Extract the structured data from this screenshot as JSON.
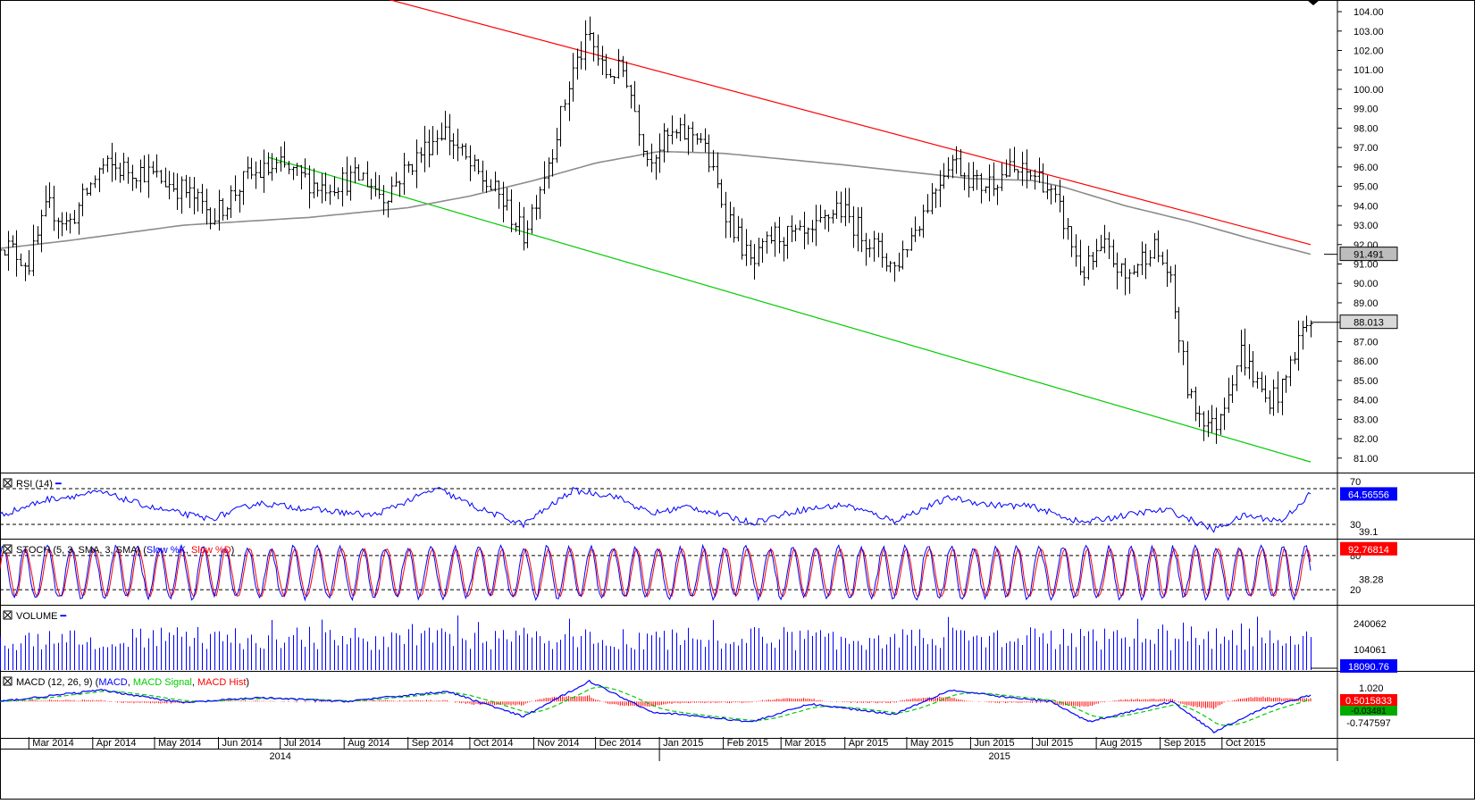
{
  "chart_data": {
    "type": "ohlc",
    "symbol_note": "",
    "date_range": [
      "2014-02-15",
      "2015-10-09"
    ],
    "price_axis": {
      "ylim": [
        80.3,
        104.6
      ],
      "ticks": [
        "104.00",
        "103.00",
        "102.00",
        "101.00",
        "100.00",
        "99.00",
        "98.00",
        "97.00",
        "96.00",
        "95.00",
        "94.00",
        "93.00",
        "92.00",
        "91.00",
        "90.00",
        "89.00",
        "88.00",
        "87.00",
        "86.00",
        "85.00",
        "84.00",
        "83.00",
        "82.00",
        "81.00"
      ],
      "last_price_label": "88.013",
      "ma_label": "91.491"
    },
    "price_keypoints": [
      [
        "2014-02-15",
        92.2
      ],
      [
        "2014-03-01",
        91.0
      ],
      [
        "2014-03-10",
        94.0
      ],
      [
        "2014-03-20",
        93.0
      ],
      [
        "2014-04-05",
        96.0
      ],
      [
        "2014-04-25",
        95.8
      ],
      [
        "2014-05-15",
        94.8
      ],
      [
        "2014-05-30",
        93.5
      ],
      [
        "2014-06-15",
        95.5
      ],
      [
        "2014-07-01",
        96.0
      ],
      [
        "2014-07-20",
        95.0
      ],
      [
        "2014-08-10",
        95.5
      ],
      [
        "2014-08-20",
        94.5
      ],
      [
        "2014-09-05",
        96.5
      ],
      [
        "2014-09-18",
        98.0
      ],
      [
        "2014-10-01",
        96.0
      ],
      [
        "2014-10-15",
        94.5
      ],
      [
        "2014-10-27",
        92.5
      ],
      [
        "2014-11-10",
        97.0
      ],
      [
        "2014-11-20",
        101.0
      ],
      [
        "2014-11-28",
        102.7
      ],
      [
        "2014-12-05",
        100.8
      ],
      [
        "2014-12-15",
        101.0
      ],
      [
        "2014-12-26",
        96.5
      ],
      [
        "2015-01-05",
        97.5
      ],
      [
        "2015-01-20",
        97.8
      ],
      [
        "2015-02-01",
        94.0
      ],
      [
        "2015-02-15",
        90.8
      ],
      [
        "2015-02-25",
        92.5
      ],
      [
        "2015-03-15",
        92.3
      ],
      [
        "2015-03-28",
        94.0
      ],
      [
        "2015-04-10",
        92.5
      ],
      [
        "2015-04-25",
        90.8
      ],
      [
        "2015-05-08",
        93.5
      ],
      [
        "2015-05-22",
        96.5
      ],
      [
        "2015-06-05",
        95.0
      ],
      [
        "2015-06-20",
        95.8
      ],
      [
        "2015-07-05",
        95.5
      ],
      [
        "2015-07-15",
        93.5
      ],
      [
        "2015-07-25",
        90.5
      ],
      [
        "2015-08-05",
        91.8
      ],
      [
        "2015-08-15",
        90.2
      ],
      [
        "2015-08-28",
        92.0
      ],
      [
        "2015-09-05",
        90.5
      ],
      [
        "2015-09-15",
        84.0
      ],
      [
        "2015-09-27",
        82.5
      ],
      [
        "2015-10-10",
        86.5
      ],
      [
        "2015-10-22",
        84.0
      ],
      [
        "2015-10-30",
        84.5
      ],
      [
        "2015-11-08",
        87.5
      ],
      [
        "2015-11-12",
        88.0
      ]
    ],
    "moving_average": [
      [
        "2014-02-15",
        91.8
      ],
      [
        "2014-03-20",
        92.2
      ],
      [
        "2014-05-15",
        93.0
      ],
      [
        "2014-07-15",
        93.4
      ],
      [
        "2014-09-01",
        93.9
      ],
      [
        "2014-10-01",
        94.5
      ],
      [
        "2014-11-01",
        95.3
      ],
      [
        "2014-12-01",
        96.2
      ],
      [
        "2015-01-01",
        96.8
      ],
      [
        "2015-02-01",
        96.7
      ],
      [
        "2015-04-01",
        96.1
      ],
      [
        "2015-06-01",
        95.4
      ],
      [
        "2015-07-01",
        95.3
      ],
      [
        "2015-07-15",
        95.0
      ],
      [
        "2015-08-15",
        94.0
      ],
      [
        "2015-09-15",
        93.2
      ],
      [
        "2015-10-15",
        92.3
      ],
      [
        "2015-11-13",
        91.5
      ]
    ],
    "resistance_line": {
      "from": [
        "2014-08-20",
        104.7
      ],
      "to": [
        "2015-11-13",
        92.0
      ]
    },
    "support_line": {
      "from": [
        "2014-06-25",
        96.5
      ],
      "to": [
        "2015-11-13",
        80.8
      ]
    },
    "rsi": {
      "label": "RSI (14)",
      "levels": [
        "70",
        "30"
      ],
      "value_label": "64.56556",
      "axis_label": "39.1",
      "keypoints": [
        [
          "2014-02-15",
          40
        ],
        [
          "2014-03-10",
          58
        ],
        [
          "2014-04-05",
          66
        ],
        [
          "2014-05-01",
          48
        ],
        [
          "2014-05-28",
          36
        ],
        [
          "2014-06-20",
          54
        ],
        [
          "2014-07-20",
          46
        ],
        [
          "2014-08-15",
          40
        ],
        [
          "2014-09-15",
          70
        ],
        [
          "2014-10-05",
          48
        ],
        [
          "2014-10-27",
          30
        ],
        [
          "2014-11-20",
          68
        ],
        [
          "2014-12-10",
          62
        ],
        [
          "2014-12-28",
          42
        ],
        [
          "2015-01-15",
          50
        ],
        [
          "2015-02-15",
          32
        ],
        [
          "2015-03-10",
          46
        ],
        [
          "2015-04-01",
          52
        ],
        [
          "2015-04-25",
          34
        ],
        [
          "2015-05-22",
          60
        ],
        [
          "2015-06-10",
          52
        ],
        [
          "2015-07-01",
          50
        ],
        [
          "2015-07-25",
          32
        ],
        [
          "2015-08-25",
          44
        ],
        [
          "2015-09-05",
          46
        ],
        [
          "2015-09-27",
          24
        ],
        [
          "2015-10-12",
          40
        ],
        [
          "2015-10-30",
          34
        ],
        [
          "2015-11-13",
          64.6
        ]
      ]
    },
    "stochastic": {
      "label": "STOCH (5, 3, SMA, 3, SMA)",
      "k_label": "Slow %K",
      "d_label": "Slow %D",
      "levels": [
        "80",
        "20"
      ],
      "value_label": "92.76814",
      "axis_label": "38.28"
    },
    "volume": {
      "label": "VOLUME",
      "axis_labels": [
        "240062",
        "104061"
      ],
      "value_label": "18090.76"
    },
    "macd": {
      "label": "MACD (12, 26, 9)",
      "macd_label": "MACD",
      "signal_label": "MACD Signal",
      "hist_label": "MACD Hist",
      "value_labels": [
        "0.5015833",
        "-0.03481",
        "-0.747597"
      ],
      "axis_label": "1.020",
      "keypoints": [
        [
          "2014-02-15",
          0.0
        ],
        [
          "2014-04-05",
          0.9
        ],
        [
          "2014-05-15",
          -0.1
        ],
        [
          "2014-06-20",
          0.3
        ],
        [
          "2014-08-01",
          0.0
        ],
        [
          "2014-09-20",
          0.8
        ],
        [
          "2014-10-27",
          -1.2
        ],
        [
          "2014-11-28",
          1.6
        ],
        [
          "2014-12-28",
          -0.8
        ],
        [
          "2015-02-15",
          -1.6
        ],
        [
          "2015-03-15",
          -0.2
        ],
        [
          "2015-04-25",
          -1.0
        ],
        [
          "2015-05-22",
          0.9
        ],
        [
          "2015-06-20",
          0.3
        ],
        [
          "2015-07-10",
          0.0
        ],
        [
          "2015-07-28",
          -1.6
        ],
        [
          "2015-08-25",
          -0.5
        ],
        [
          "2015-09-07",
          0.0
        ],
        [
          "2015-09-27",
          -2.4
        ],
        [
          "2015-10-20",
          -0.6
        ],
        [
          "2015-11-13",
          0.5
        ]
      ]
    },
    "x_axis": {
      "months": [
        {
          "label": "Mar 2014",
          "date": "2014-03-01"
        },
        {
          "label": "Apr 2014",
          "date": "2014-04-01"
        },
        {
          "label": "May 2014",
          "date": "2014-05-01"
        },
        {
          "label": "Jun 2014",
          "date": "2014-06-01"
        },
        {
          "label": "Jul 2014",
          "date": "2014-07-01"
        },
        {
          "label": "Aug 2014",
          "date": "2014-08-01"
        },
        {
          "label": "Sep 2014",
          "date": "2014-09-01"
        },
        {
          "label": "Oct 2014",
          "date": "2014-10-01"
        },
        {
          "label": "Nov 2014",
          "date": "2014-11-01"
        },
        {
          "label": "Dec 2014",
          "date": "2014-12-01"
        },
        {
          "label": "Jan 2015",
          "date": "2015-01-01"
        },
        {
          "label": "Feb 2015",
          "date": "2015-02-01"
        },
        {
          "label": "Mar 2015",
          "date": "2015-03-01"
        },
        {
          "label": "Apr 2015",
          "date": "2015-04-01"
        },
        {
          "label": "May 2015",
          "date": "2015-05-01"
        },
        {
          "label": "Jun 2015",
          "date": "2015-06-01"
        },
        {
          "label": "Jul 2015",
          "date": "2015-07-01"
        },
        {
          "label": "Aug 2015",
          "date": "2015-08-01"
        },
        {
          "label": "Sep 2015",
          "date": "2015-09-01"
        },
        {
          "label": "Oct 2015",
          "date": "2015-10-01"
        }
      ],
      "years": [
        {
          "label": "2014",
          "date": "2014-07-01"
        },
        {
          "label": "2015",
          "date": "2015-06-15"
        }
      ]
    },
    "colors": {
      "price_bars": "#000000",
      "moving_average": "#8c8c8c",
      "resistance": "#ff0000",
      "support": "#00cc00",
      "rsi_line": "#0000ff",
      "stoch_k": "#0000ff",
      "stoch_d": "#ff0000",
      "volume": "#0000ff",
      "macd": "#0000ff",
      "signal": "#00cc00",
      "hist": "#ff0000",
      "value_box_blue": "#0000ff",
      "value_box_red": "#ff0000"
    }
  }
}
